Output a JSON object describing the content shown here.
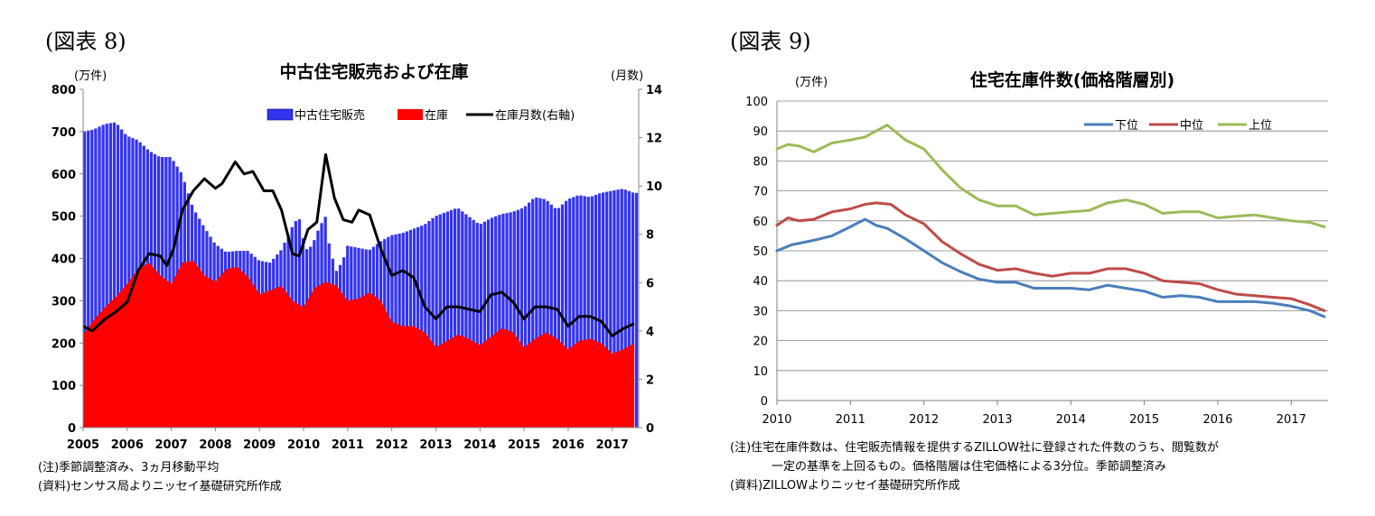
{
  "fig8": {
    "label": "(図表 8)",
    "notes": [
      "(注)季節調整済み、3ヵ月移動平均",
      "(資料)センサス局よりニッセイ基礎研究所作成"
    ]
  },
  "fig9": {
    "label": "(図表 9)",
    "notes": [
      "(注)住宅在庫件数は、住宅販売情報を提供するZILLOW社に登録された件数のうち、閲覧数が",
      "一定の基準を上回るもの。価格階層は住宅価格による3分位。季節調整済み",
      "(資料)ZILLOWよりニッセイ基礎研究所作成"
    ]
  },
  "chart_data": [
    {
      "type": "bar",
      "title": "中古住宅販売および在庫",
      "ylabel": "(万件)",
      "y2label": "(月数)",
      "ylim": [
        0,
        800
      ],
      "yticks": [
        0,
        100,
        200,
        300,
        400,
        500,
        600,
        700,
        800
      ],
      "y2lim": [
        0,
        14
      ],
      "y2ticks": [
        0,
        2,
        4,
        6,
        8,
        10,
        12,
        14
      ],
      "xticks": [
        "2005",
        "2006",
        "2007",
        "2008",
        "2009",
        "2010",
        "2011",
        "2012",
        "2013",
        "2014",
        "2015",
        "2016",
        "2017"
      ],
      "legend_position": "top-right",
      "grid": false,
      "series": [
        {
          "name": "中古住宅販売",
          "kind": "bar",
          "color": "#3333ee",
          "x": [
            2005.0,
            2005.25,
            2005.5,
            2005.75,
            2006.0,
            2006.25,
            2006.5,
            2006.75,
            2007.0,
            2007.25,
            2007.5,
            2007.75,
            2008.0,
            2008.25,
            2008.5,
            2008.75,
            2009.0,
            2009.25,
            2009.5,
            2009.75,
            2009.9,
            2010.05,
            2010.2,
            2010.35,
            2010.5,
            2010.6,
            2010.75,
            2010.9,
            2011.0,
            2011.25,
            2011.5,
            2011.75,
            2012.0,
            2012.25,
            2012.5,
            2012.75,
            2013.0,
            2013.25,
            2013.5,
            2013.75,
            2014.0,
            2014.25,
            2014.5,
            2014.75,
            2015.0,
            2015.25,
            2015.5,
            2015.75,
            2016.0,
            2016.25,
            2016.5,
            2016.75,
            2017.0,
            2017.25,
            2017.5
          ],
          "values": [
            700,
            705,
            718,
            722,
            690,
            680,
            655,
            640,
            640,
            600,
            520,
            475,
            435,
            415,
            418,
            418,
            395,
            390,
            420,
            475,
            500,
            420,
            430,
            470,
            500,
            425,
            370,
            395,
            430,
            425,
            420,
            440,
            455,
            460,
            470,
            480,
            500,
            510,
            520,
            500,
            480,
            495,
            505,
            510,
            520,
            545,
            540,
            515,
            540,
            550,
            545,
            555,
            560,
            565,
            555
          ]
        },
        {
          "name": "在庫",
          "kind": "area",
          "color": "#ff0000",
          "x": [
            2005.0,
            2005.25,
            2005.5,
            2005.75,
            2006.0,
            2006.25,
            2006.5,
            2006.75,
            2007.0,
            2007.25,
            2007.5,
            2007.75,
            2008.0,
            2008.25,
            2008.5,
            2008.75,
            2009.0,
            2009.25,
            2009.5,
            2009.75,
            2010.0,
            2010.25,
            2010.5,
            2010.75,
            2011.0,
            2011.25,
            2011.5,
            2011.75,
            2012.0,
            2012.25,
            2012.5,
            2012.75,
            2013.0,
            2013.25,
            2013.5,
            2013.75,
            2014.0,
            2014.25,
            2014.5,
            2014.75,
            2015.0,
            2015.25,
            2015.5,
            2015.75,
            2016.0,
            2016.25,
            2016.5,
            2016.75,
            2017.0,
            2017.25,
            2017.5
          ],
          "values": [
            220,
            255,
            285,
            310,
            340,
            375,
            390,
            360,
            340,
            390,
            395,
            360,
            345,
            375,
            380,
            355,
            315,
            325,
            335,
            300,
            285,
            330,
            345,
            335,
            300,
            305,
            320,
            300,
            250,
            240,
            240,
            225,
            190,
            205,
            220,
            210,
            195,
            215,
            235,
            225,
            190,
            210,
            225,
            210,
            185,
            205,
            210,
            200,
            175,
            185,
            200
          ]
        },
        {
          "name": "在庫月数(右軸)",
          "kind": "line",
          "axis": "right",
          "color": "#000000",
          "x": [
            2005.0,
            2005.2,
            2005.5,
            2005.75,
            2006.0,
            2006.25,
            2006.5,
            2006.75,
            2006.9,
            2007.05,
            2007.25,
            2007.5,
            2007.75,
            2008.0,
            2008.15,
            2008.45,
            2008.65,
            2008.85,
            2009.1,
            2009.3,
            2009.5,
            2009.75,
            2009.9,
            2010.1,
            2010.3,
            2010.5,
            2010.7,
            2010.9,
            2011.1,
            2011.25,
            2011.5,
            2011.75,
            2012.0,
            2012.25,
            2012.5,
            2012.75,
            2013.0,
            2013.25,
            2013.5,
            2013.75,
            2014.0,
            2014.25,
            2014.5,
            2014.75,
            2015.0,
            2015.25,
            2015.5,
            2015.75,
            2016.0,
            2016.25,
            2016.5,
            2016.75,
            2017.0,
            2017.25,
            2017.5
          ],
          "values": [
            4.2,
            4.0,
            4.5,
            4.8,
            5.2,
            6.5,
            7.2,
            7.1,
            6.7,
            7.4,
            9.0,
            9.8,
            10.3,
            9.9,
            10.1,
            11.0,
            10.5,
            10.6,
            9.8,
            9.8,
            9.0,
            7.2,
            7.1,
            8.2,
            8.5,
            11.3,
            9.5,
            8.6,
            8.5,
            9.0,
            8.8,
            7.4,
            6.3,
            6.5,
            6.2,
            5.0,
            4.5,
            5.0,
            5.0,
            4.9,
            4.8,
            5.5,
            5.6,
            5.2,
            4.5,
            5.0,
            5.0,
            4.9,
            4.2,
            4.6,
            4.6,
            4.4,
            3.8,
            4.1,
            4.3
          ]
        }
      ]
    },
    {
      "type": "line",
      "title": "住宅在庫件数(価格階層別)",
      "ylabel": "(万件)",
      "ylim": [
        0,
        100
      ],
      "yticks": [
        0,
        10,
        20,
        30,
        40,
        50,
        60,
        70,
        80,
        90,
        100
      ],
      "xlim": [
        2010.0,
        2017.5
      ],
      "xticks": [
        "2010",
        "2011",
        "2012",
        "2013",
        "2014",
        "2015",
        "2016",
        "2017"
      ],
      "legend_position": "top-right",
      "grid": true,
      "series": [
        {
          "name": "下位",
          "color": "#4a7ebb",
          "x": [
            2010.0,
            2010.2,
            2010.5,
            2010.75,
            2011.0,
            2011.2,
            2011.35,
            2011.5,
            2011.75,
            2012.0,
            2012.25,
            2012.5,
            2012.75,
            2013.0,
            2013.25,
            2013.5,
            2013.75,
            2014.0,
            2014.25,
            2014.5,
            2014.75,
            2015.0,
            2015.25,
            2015.5,
            2015.75,
            2016.0,
            2016.25,
            2016.5,
            2016.75,
            2017.0,
            2017.25,
            2017.45
          ],
          "values": [
            50,
            52,
            53.5,
            55,
            58,
            60.5,
            58.5,
            57.5,
            54,
            50,
            46,
            43,
            40.5,
            39.5,
            39.5,
            37.5,
            37.5,
            37.5,
            37,
            38.5,
            37.5,
            36.5,
            34.5,
            35,
            34.5,
            33,
            33,
            33,
            32.5,
            31.5,
            30,
            28
          ]
        },
        {
          "name": "中位",
          "color": "#be4b48",
          "x": [
            2010.0,
            2010.15,
            2010.3,
            2010.5,
            2010.75,
            2011.0,
            2011.2,
            2011.35,
            2011.55,
            2011.75,
            2012.0,
            2012.25,
            2012.5,
            2012.75,
            2013.0,
            2013.25,
            2013.5,
            2013.75,
            2014.0,
            2014.25,
            2014.5,
            2014.75,
            2015.0,
            2015.25,
            2015.5,
            2015.75,
            2016.0,
            2016.25,
            2016.5,
            2016.75,
            2017.0,
            2017.25,
            2017.45
          ],
          "values": [
            58.5,
            61,
            60,
            60.5,
            63,
            64,
            65.5,
            66,
            65.5,
            62,
            59,
            53,
            49,
            45.5,
            43.5,
            44,
            42.5,
            41.5,
            42.5,
            42.5,
            44,
            44,
            42.5,
            40,
            39.5,
            39,
            37,
            35.5,
            35,
            34.5,
            34,
            32,
            30
          ]
        },
        {
          "name": "上位",
          "color": "#9bbb59",
          "x": [
            2010.0,
            2010.15,
            2010.3,
            2010.5,
            2010.75,
            2011.0,
            2011.2,
            2011.35,
            2011.5,
            2011.75,
            2012.0,
            2012.25,
            2012.5,
            2012.75,
            2013.0,
            2013.25,
            2013.5,
            2013.75,
            2014.0,
            2014.25,
            2014.5,
            2014.75,
            2015.0,
            2015.25,
            2015.5,
            2015.75,
            2016.0,
            2016.25,
            2016.5,
            2016.75,
            2017.0,
            2017.25,
            2017.45
          ],
          "values": [
            84,
            85.5,
            85,
            83,
            86,
            87,
            88,
            90,
            92,
            87,
            84,
            77,
            71,
            67,
            65,
            65,
            62,
            62.5,
            63,
            63.5,
            66,
            67,
            65.5,
            62.5,
            63,
            63,
            61,
            61.5,
            62,
            61,
            60,
            59.5,
            58
          ]
        }
      ]
    }
  ]
}
